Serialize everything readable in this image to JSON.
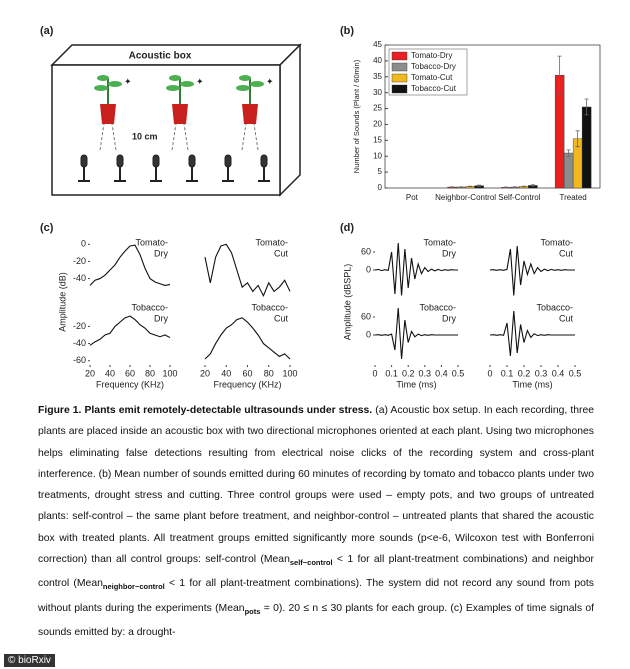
{
  "panels": {
    "a": "(a)",
    "b": "(b)",
    "c": "(c)",
    "d": "(d)"
  },
  "diagram": {
    "title": "Acoustic box",
    "distance": "10 cm"
  },
  "chart_data": [
    {
      "type": "bar",
      "ylabel": "Number of Sounds (Plant / 60min)",
      "categories": [
        "Pot",
        "Neighbor-Control",
        "Self-Control",
        "Treated"
      ],
      "series": [
        {
          "name": "Tomato-Dry",
          "color": "#e8201f",
          "values": [
            0,
            0.3,
            0.2,
            35.5
          ],
          "errors": [
            0,
            0.1,
            0.1,
            6
          ]
        },
        {
          "name": "Tobacco-Dry",
          "color": "#8c8c8c",
          "values": [
            0,
            0.3,
            0.3,
            11
          ],
          "errors": [
            0,
            0.1,
            0.1,
            1
          ]
        },
        {
          "name": "Tomato-Cut",
          "color": "#f2b91e",
          "values": [
            0,
            0.5,
            0.5,
            15.5
          ],
          "errors": [
            0,
            0.1,
            0.1,
            2.5
          ]
        },
        {
          "name": "Tobacco-Cut",
          "color": "#111111",
          "values": [
            0,
            0.7,
            0.8,
            25.5
          ],
          "errors": [
            0,
            0.2,
            0.2,
            2.5
          ]
        }
      ],
      "ylim": [
        0,
        45
      ],
      "yticks": [
        0,
        5,
        10,
        15,
        20,
        25,
        30,
        35,
        40,
        45
      ],
      "legend": "upper left"
    },
    {
      "type": "line",
      "label": [
        "Tomato-",
        "Dry"
      ],
      "ylabel": "Amplitude (dB)",
      "x": [
        20,
        25,
        30,
        35,
        40,
        45,
        50,
        55,
        60,
        65,
        70,
        75,
        80,
        85,
        90,
        95,
        100
      ],
      "values": [
        -48,
        -42,
        -40,
        -36,
        -30,
        -24,
        -15,
        -8,
        -2,
        -1,
        -12,
        -28,
        -40,
        -44,
        -46,
        -48,
        -47
      ],
      "xlim": [
        20,
        100
      ],
      "ylim": [
        -65,
        5
      ],
      "yticks": [
        0,
        -20,
        -40
      ]
    },
    {
      "type": "line",
      "label": [
        "Tomato-",
        "Cut"
      ],
      "x": [
        20,
        25,
        30,
        35,
        40,
        45,
        50,
        55,
        60,
        65,
        70,
        75,
        80,
        85,
        90,
        95,
        100
      ],
      "values": [
        -15,
        -45,
        -15,
        -2,
        0,
        -10,
        -30,
        -50,
        -45,
        -55,
        -48,
        -60,
        -45,
        -55,
        -50,
        -42,
        -55
      ],
      "xlim": [
        20,
        100
      ],
      "ylim": [
        -65,
        5
      ]
    },
    {
      "type": "line",
      "label": [
        "Tobacco-",
        "Dry"
      ],
      "xlabel": "Frequency (KHz)",
      "x": [
        20,
        25,
        30,
        35,
        40,
        45,
        50,
        55,
        60,
        65,
        70,
        75,
        80,
        85,
        90,
        95,
        100
      ],
      "values": [
        -42,
        -38,
        -35,
        -30,
        -28,
        -20,
        -15,
        -10,
        -8,
        -12,
        -18,
        -22,
        -28,
        -30,
        -32,
        -30,
        -33
      ],
      "xlim": [
        20,
        100
      ],
      "ylim": [
        -65,
        5
      ],
      "yticks": [
        -20,
        -40,
        -60
      ],
      "xticks": [
        20,
        40,
        60,
        80,
        100
      ]
    },
    {
      "type": "line",
      "label": [
        "Tobacco-",
        "Cut"
      ],
      "xlabel": "Frequency (KHz)",
      "x": [
        20,
        25,
        30,
        35,
        40,
        45,
        50,
        55,
        60,
        65,
        70,
        75,
        80,
        85,
        90,
        95,
        100
      ],
      "values": [
        -58,
        -52,
        -40,
        -30,
        -22,
        -18,
        -12,
        -10,
        -15,
        -22,
        -30,
        -40,
        -45,
        -50,
        -55,
        -52,
        -58
      ],
      "xlim": [
        20,
        100
      ],
      "ylim": [
        -65,
        5
      ],
      "xticks": [
        20,
        40,
        60,
        80,
        100
      ]
    },
    {
      "type": "line",
      "label": [
        "Tomato-",
        "Dry"
      ],
      "ylabel": "Amplitude (dBSPL)",
      "x": [
        0,
        0.02,
        0.04,
        0.06,
        0.08,
        0.1,
        0.12,
        0.14,
        0.16,
        0.18,
        0.2,
        0.22,
        0.24,
        0.26,
        0.28,
        0.3,
        0.32,
        0.34,
        0.36,
        0.38,
        0.4,
        0.42,
        0.44,
        0.46,
        0.48,
        0.5
      ],
      "values": [
        0,
        2,
        -2,
        1,
        -1,
        60,
        -80,
        90,
        -85,
        70,
        -60,
        40,
        -30,
        20,
        -12,
        8,
        -5,
        3,
        -3,
        2,
        -2,
        1,
        -1,
        1,
        0,
        0
      ],
      "xlim": [
        0,
        0.5
      ],
      "ylim": [
        -100,
        100
      ],
      "yticks": [
        60,
        0
      ]
    },
    {
      "type": "line",
      "label": [
        "Tomato-",
        "Cut"
      ],
      "x": [
        0,
        0.02,
        0.04,
        0.06,
        0.08,
        0.1,
        0.12,
        0.14,
        0.16,
        0.18,
        0.2,
        0.22,
        0.24,
        0.26,
        0.28,
        0.3,
        0.32,
        0.34,
        0.36,
        0.38,
        0.4,
        0.42,
        0.44,
        0.46,
        0.48,
        0.5
      ],
      "values": [
        0,
        1,
        -1,
        1,
        -1,
        2,
        70,
        -85,
        80,
        -50,
        30,
        -15,
        20,
        -12,
        8,
        -5,
        3,
        -2,
        2,
        -1,
        1,
        -1,
        1,
        0,
        0,
        0
      ],
      "xlim": [
        0,
        0.5
      ],
      "ylim": [
        -100,
        100
      ]
    },
    {
      "type": "line",
      "label": [
        "Tobacco-",
        "Dry"
      ],
      "xlabel": "Time (ms)",
      "x": [
        0,
        0.02,
        0.04,
        0.06,
        0.08,
        0.1,
        0.12,
        0.14,
        0.16,
        0.18,
        0.2,
        0.22,
        0.24,
        0.26,
        0.28,
        0.3,
        0.32,
        0.34,
        0.36,
        0.38,
        0.4,
        0.42,
        0.44,
        0.46,
        0.48,
        0.5
      ],
      "values": [
        0,
        1,
        -1,
        1,
        -1,
        3,
        -50,
        90,
        -80,
        50,
        -25,
        12,
        -6,
        3,
        -2,
        1,
        -1,
        1,
        0,
        0,
        0,
        0,
        0,
        0,
        0,
        0
      ],
      "xlim": [
        0,
        0.5
      ],
      "ylim": [
        -100,
        100
      ],
      "yticks": [
        60,
        0
      ],
      "xticks": [
        0,
        0.1,
        0.2,
        0.3,
        0.4,
        0.5
      ]
    },
    {
      "type": "line",
      "label": [
        "Tobacco-",
        "Cut"
      ],
      "xlabel": "Time (ms)",
      "x": [
        0,
        0.02,
        0.04,
        0.06,
        0.08,
        0.1,
        0.12,
        0.14,
        0.16,
        0.18,
        0.2,
        0.22,
        0.24,
        0.26,
        0.28,
        0.3,
        0.32,
        0.34,
        0.36,
        0.38,
        0.4,
        0.42,
        0.44,
        0.46,
        0.48,
        0.5
      ],
      "values": [
        0,
        1,
        -1,
        1,
        -1,
        40,
        -70,
        80,
        -60,
        35,
        -25,
        15,
        -8,
        4,
        -2,
        1,
        -1,
        1,
        0,
        0,
        0,
        0,
        0,
        0,
        0,
        0
      ],
      "xlim": [
        0,
        0.5
      ],
      "ylim": [
        -100,
        100
      ],
      "xticks": [
        0,
        0.1,
        0.2,
        0.3,
        0.4,
        0.5
      ]
    }
  ],
  "caption": [
    {
      "style": "bold",
      "text": "Figure 1. Plants emit remotely-detectable ultrasounds under stress."
    },
    {
      "style": "normal",
      "text": " (a) Acoustic box setup. In each recording, three plants are placed inside an acoustic box with two directional microphones oriented at each plant. Using two microphones helps eliminating false detections resulting from electrical noise clicks of the recording system and cross-plant interference. (b) Mean number of sounds emitted during 60 minutes of recording by tomato and tobacco plants under two treatments, drought stress and cutting. Three control groups were used – empty pots, and two groups of untreated plants: self-control – the same plant before treatment, and neighbor-control – untreated plants that shared the acoustic box with treated plants. All treatment groups emitted significantly more sounds (p<e-6, Wilcoxon test with Bonferroni correction) than all control groups: self-control (Mean"
    },
    {
      "style": "sub",
      "text": "self−control"
    },
    {
      "style": "normal",
      "text": " < 1 for all plant-treatment combinations) and neighbor control (Mean"
    },
    {
      "style": "sub",
      "text": "neighbor−control"
    },
    {
      "style": "normal",
      "text": " < 1 for all plant-treatment combinations). The system did not record any sound from pots without plants during the experiments (Mean"
    },
    {
      "style": "sub",
      "text": "pots"
    },
    {
      "style": "normal",
      "text": " = 0). 20 ≤ n ≤ 30 plants for each group. (c) Examples of time signals of sounds emitted by: a drought-"
    }
  ],
  "footer": "© bioRxiv"
}
